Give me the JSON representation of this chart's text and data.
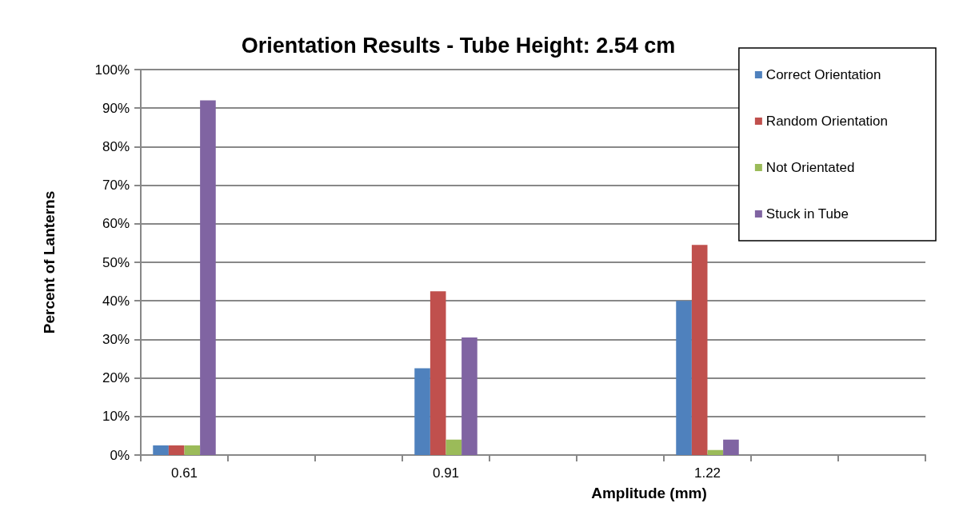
{
  "chart_data": {
    "type": "bar",
    "title": "Orientation Results - Tube Height: 2.54 cm",
    "xlabel": "Amplitude (mm)",
    "ylabel": "Percent of Lanterns",
    "categories": [
      "0.61",
      null,
      null,
      "0.91",
      null,
      null,
      "1.22",
      null,
      null
    ],
    "series": [
      {
        "name": "Correct Orientation",
        "color": "#4f81bd",
        "values": [
          2.5,
          null,
          null,
          22.5,
          null,
          null,
          40,
          null,
          null
        ]
      },
      {
        "name": "Random Orientation",
        "color": "#c0504d",
        "values": [
          2.5,
          null,
          null,
          42.5,
          null,
          null,
          54.5,
          null,
          null
        ]
      },
      {
        "name": "Not Orientated",
        "color": "#9bbb59",
        "values": [
          2.5,
          null,
          null,
          4,
          null,
          null,
          1.3,
          null,
          null
        ]
      },
      {
        "name": "Stuck in Tube",
        "color": "#8064a2",
        "values": [
          92,
          null,
          null,
          30.5,
          null,
          null,
          4,
          null,
          null
        ]
      }
    ],
    "ylim": [
      0,
      100
    ],
    "yticks": [
      {
        "value": 0,
        "label": "0%"
      },
      {
        "value": 10,
        "label": "10%"
      },
      {
        "value": 20,
        "label": "20%"
      },
      {
        "value": 30,
        "label": "30%"
      },
      {
        "value": 40,
        "label": "40%"
      },
      {
        "value": 50,
        "label": "50%"
      },
      {
        "value": 60,
        "label": "60%"
      },
      {
        "value": 70,
        "label": "70%"
      },
      {
        "value": 80,
        "label": "80%"
      },
      {
        "value": 90,
        "label": "90%"
      },
      {
        "value": 100,
        "label": "100%"
      }
    ],
    "grid": "y",
    "legend": "top right"
  }
}
